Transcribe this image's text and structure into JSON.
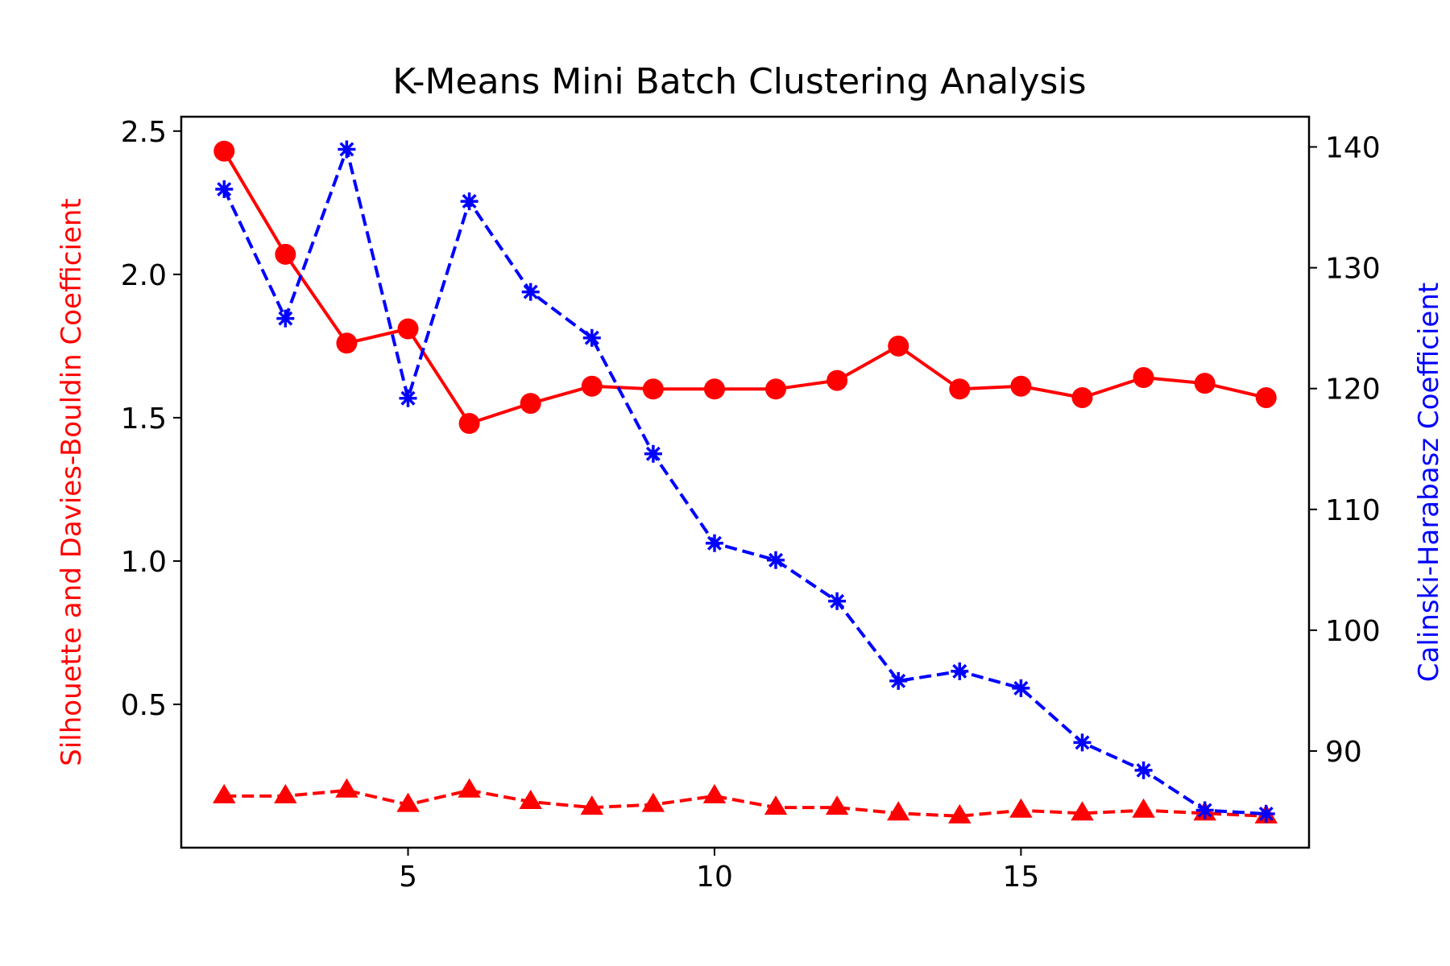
{
  "chart_data": {
    "type": "line",
    "title": "K-Means Mini Batch Clustering Analysis",
    "x": [
      2,
      3,
      4,
      5,
      6,
      7,
      8,
      9,
      10,
      11,
      12,
      13,
      14,
      15,
      16,
      17,
      18,
      19
    ],
    "xticks": [
      5,
      10,
      15
    ],
    "xlim": [
      1.3,
      19.7
    ],
    "y_left": {
      "label": "Silhouette and Davies-Bouldin Coefficient",
      "color": "#ff0000",
      "lim": [
        0.0,
        2.55
      ],
      "ticks": [
        0.5,
        1.0,
        1.5,
        2.0,
        2.5
      ],
      "tick_labels": [
        "0.5",
        "1.0",
        "1.5",
        "2.0",
        "2.5"
      ]
    },
    "y_right": {
      "label": "Calinski-Harabasz Coefficient",
      "color": "#0000ff",
      "lim": [
        82.0,
        142.5
      ],
      "ticks": [
        90,
        100,
        110,
        120,
        130,
        140
      ],
      "tick_labels": [
        "90",
        "100",
        "110",
        "120",
        "130",
        "140"
      ]
    },
    "series": [
      {
        "axis": "left",
        "color": "#ff0000",
        "style": "solid",
        "marker": "circle",
        "values": [
          2.43,
          2.07,
          1.76,
          1.81,
          1.48,
          1.55,
          1.61,
          1.6,
          1.6,
          1.6,
          1.63,
          1.75,
          1.6,
          1.61,
          1.57,
          1.64,
          1.62,
          1.57
        ]
      },
      {
        "axis": "left",
        "color": "#ff0000",
        "style": "dashed",
        "marker": "triangle",
        "values": [
          0.18,
          0.18,
          0.2,
          0.15,
          0.2,
          0.16,
          0.14,
          0.15,
          0.18,
          0.14,
          0.14,
          0.12,
          0.11,
          0.13,
          0.12,
          0.13,
          0.12,
          0.11
        ]
      },
      {
        "axis": "right",
        "color": "#0000ff",
        "style": "dashed",
        "marker": "star",
        "values": [
          136.5,
          125.8,
          139.8,
          119.2,
          135.5,
          128.0,
          124.2,
          114.6,
          107.2,
          105.8,
          102.4,
          95.8,
          96.6,
          95.2,
          90.7,
          88.4,
          85.1,
          84.8
        ]
      }
    ]
  }
}
